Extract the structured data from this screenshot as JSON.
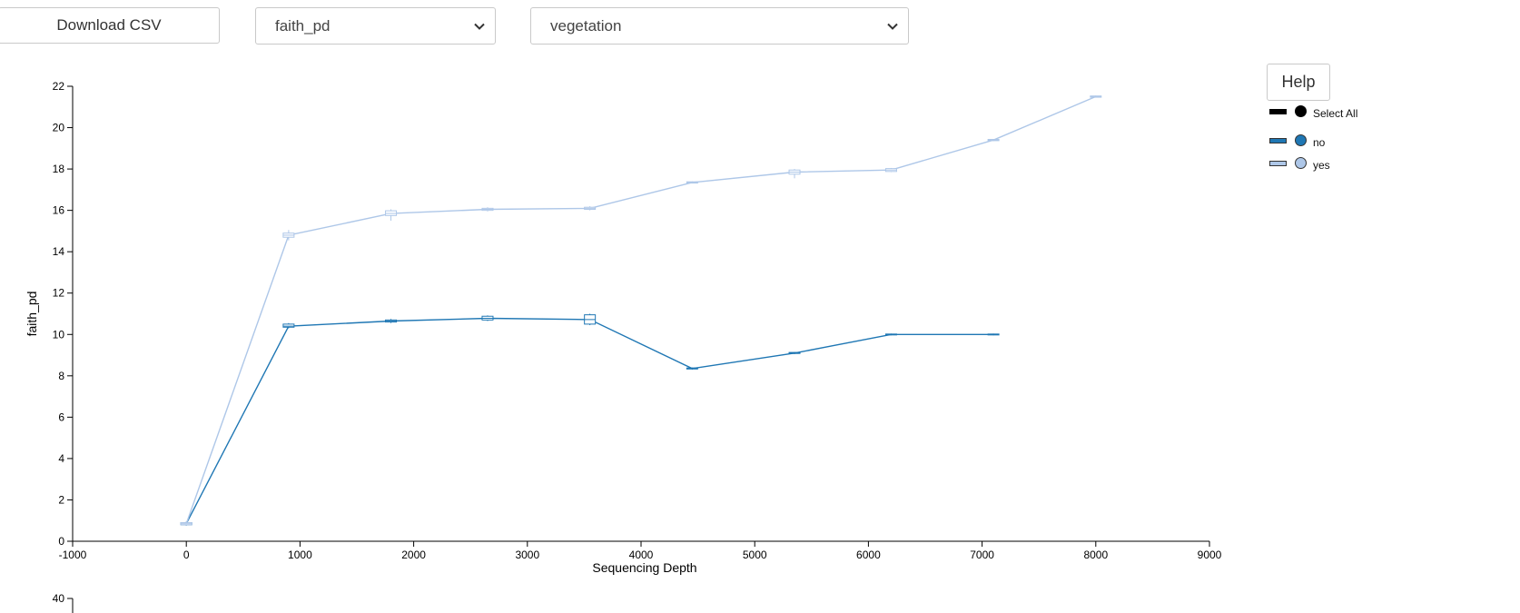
{
  "toolbar": {
    "download_label": "Download CSV",
    "metric_selected": "faith_pd",
    "group_selected": "vegetation",
    "help_label": "Help"
  },
  "legend": {
    "select_all_label": "Select All",
    "select_all_color": "#000000",
    "items": [
      {
        "label": "no",
        "color": "#1f77b4"
      },
      {
        "label": "yes",
        "color": "#aec7e8"
      }
    ]
  },
  "chart_data": [
    {
      "type": "line",
      "title": "",
      "xlabel": "Sequencing Depth",
      "ylabel": "faith_pd",
      "xlim": [
        -1000,
        9000
      ],
      "ylim": [
        0,
        22
      ],
      "x_ticks": [
        -1000,
        0,
        1000,
        2000,
        3000,
        4000,
        5000,
        6000,
        7000,
        8000,
        9000
      ],
      "y_ticks": [
        0,
        2,
        4,
        6,
        8,
        10,
        12,
        14,
        16,
        18,
        20,
        22
      ],
      "grid": false,
      "legend_position": "right",
      "series": [
        {
          "name": "no",
          "color": "#1f77b4",
          "points": [
            {
              "x": 0,
              "y": 0.85,
              "q1": 0.8,
              "q3": 0.9,
              "min": 0.75,
              "max": 0.95
            },
            {
              "x": 900,
              "y": 10.4,
              "q1": 10.35,
              "q3": 10.5,
              "min": 10.3,
              "max": 10.55
            },
            {
              "x": 1800,
              "y": 10.65,
              "q1": 10.6,
              "q3": 10.7,
              "min": 10.55,
              "max": 10.75
            },
            {
              "x": 2650,
              "y": 10.78,
              "q1": 10.7,
              "q3": 10.88,
              "min": 10.65,
              "max": 10.92
            },
            {
              "x": 3550,
              "y": 10.72,
              "q1": 10.5,
              "q3": 10.95,
              "min": 10.45,
              "max": 11.0
            },
            {
              "x": 4450,
              "y": 8.35,
              "q1": 8.33,
              "q3": 8.38,
              "min": 8.3,
              "max": 8.4
            },
            {
              "x": 5350,
              "y": 9.1,
              "q1": 9.08,
              "q3": 9.13,
              "min": 9.05,
              "max": 9.15
            },
            {
              "x": 6200,
              "y": 10.0,
              "q1": 9.98,
              "q3": 10.02,
              "min": 9.96,
              "max": 10.04
            },
            {
              "x": 7100,
              "y": 10.0,
              "q1": 9.98,
              "q3": 10.02,
              "min": 9.96,
              "max": 10.04
            }
          ]
        },
        {
          "name": "yes",
          "color": "#aec7e8",
          "points": [
            {
              "x": 0,
              "y": 0.85,
              "q1": 0.8,
              "q3": 0.9,
              "min": 0.75,
              "max": 0.95
            },
            {
              "x": 900,
              "y": 14.8,
              "q1": 14.7,
              "q3": 14.9,
              "min": 14.55,
              "max": 15.05
            },
            {
              "x": 1800,
              "y": 15.85,
              "q1": 15.75,
              "q3": 15.98,
              "min": 15.5,
              "max": 16.05
            },
            {
              "x": 2650,
              "y": 16.05,
              "q1": 16.0,
              "q3": 16.1,
              "min": 15.95,
              "max": 16.15
            },
            {
              "x": 3550,
              "y": 16.1,
              "q1": 16.05,
              "q3": 16.15,
              "min": 16.0,
              "max": 16.2
            },
            {
              "x": 4450,
              "y": 17.35,
              "q1": 17.32,
              "q3": 17.38,
              "min": 17.3,
              "max": 17.4
            },
            {
              "x": 5350,
              "y": 17.85,
              "q1": 17.75,
              "q3": 17.95,
              "min": 17.55,
              "max": 18.0
            },
            {
              "x": 6200,
              "y": 17.95,
              "q1": 17.88,
              "q3": 18.02,
              "min": 17.85,
              "max": 18.05
            },
            {
              "x": 7100,
              "y": 19.4,
              "q1": 19.37,
              "q3": 19.43,
              "min": 19.35,
              "max": 19.45
            },
            {
              "x": 8000,
              "y": 21.5,
              "q1": 21.47,
              "q3": 21.53,
              "min": 21.45,
              "max": 21.55
            }
          ]
        }
      ]
    },
    {
      "type": "line",
      "title": "",
      "xlabel": "",
      "ylabel": "",
      "ylim_visible_top": 40,
      "y_ticks": [
        40
      ],
      "series": []
    }
  ]
}
